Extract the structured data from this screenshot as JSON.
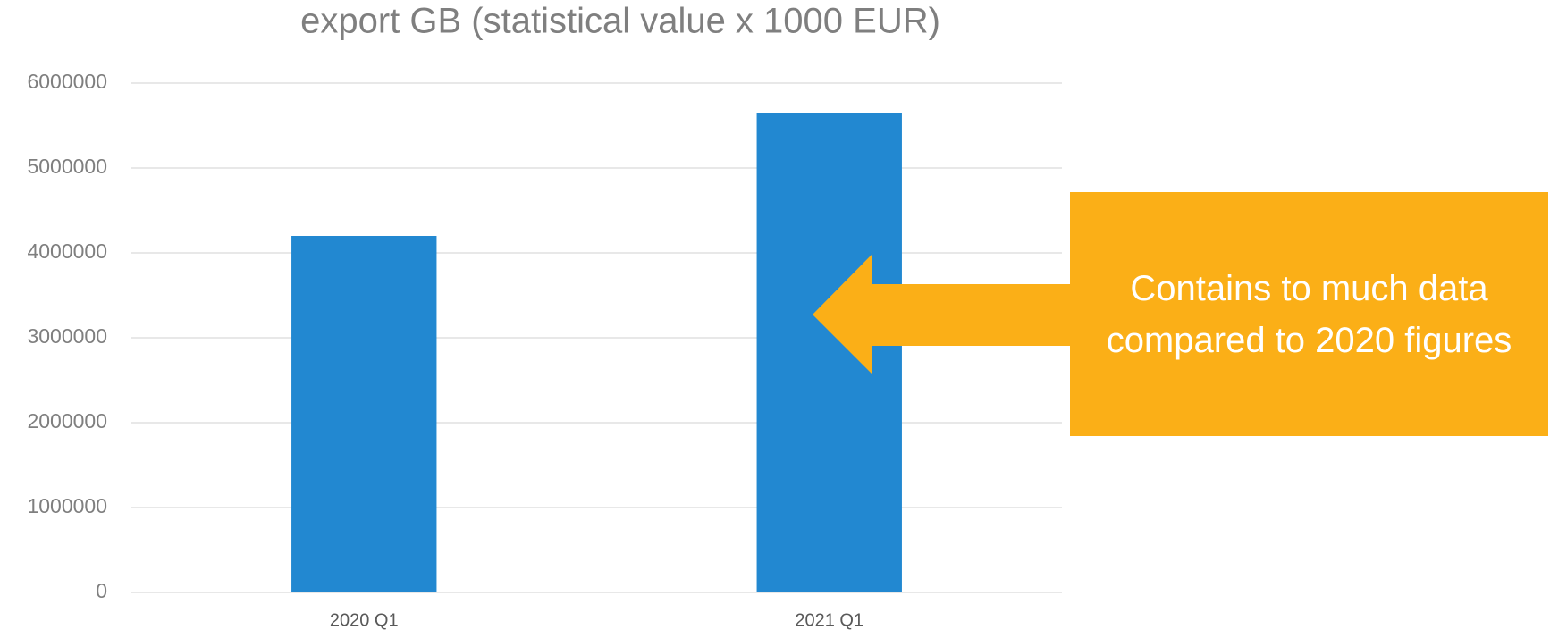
{
  "chart_data": {
    "type": "bar",
    "title": "export GB (statistical value x 1000 EUR)",
    "categories": [
      "2020 Q1",
      "2021 Q1"
    ],
    "values": [
      4200000,
      5650000
    ],
    "color": "#2288d1",
    "ylim": [
      0,
      6000000
    ],
    "yticks": [
      0,
      1000000,
      2000000,
      3000000,
      4000000,
      5000000,
      6000000
    ],
    "grid": true,
    "annotation": "Contains to much data compared to 2020 figures",
    "annotation_color": "#fbaf17"
  }
}
